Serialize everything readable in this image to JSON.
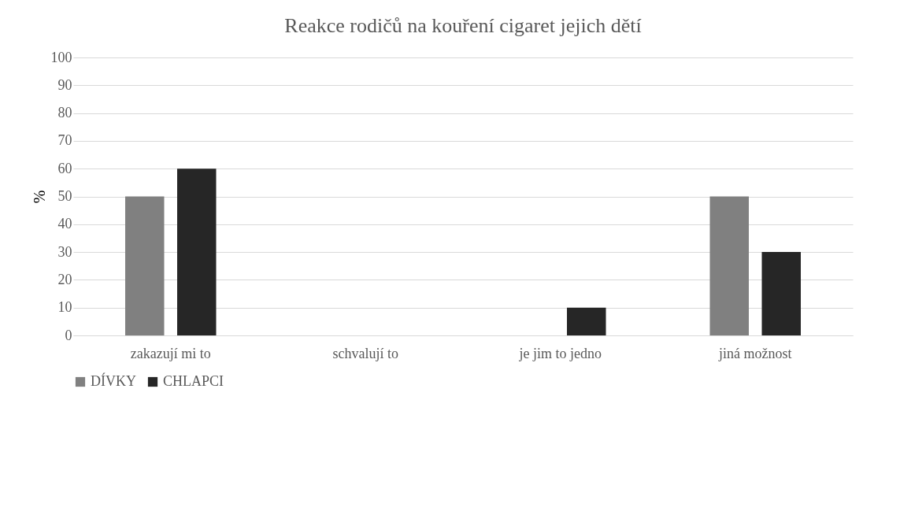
{
  "chart_data": {
    "type": "bar",
    "title": "Reakce rodičů na kouření cigaret jejich dětí",
    "ylabel": "%",
    "categories": [
      "zakazují mi to",
      "schvalují to",
      "je jim to jedno",
      "jiná možnost"
    ],
    "series": [
      {
        "name": "DÍVKY",
        "color": "#808080",
        "values": [
          50,
          0,
          0,
          50
        ]
      },
      {
        "name": "CHLAPCI",
        "color": "#262626",
        "values": [
          60,
          0,
          10,
          30
        ]
      }
    ],
    "ylim": [
      0,
      100
    ],
    "yticks": [
      0,
      10,
      20,
      30,
      40,
      50,
      60,
      70,
      80,
      90,
      100
    ],
    "grid": "y",
    "legend": "bottom"
  }
}
